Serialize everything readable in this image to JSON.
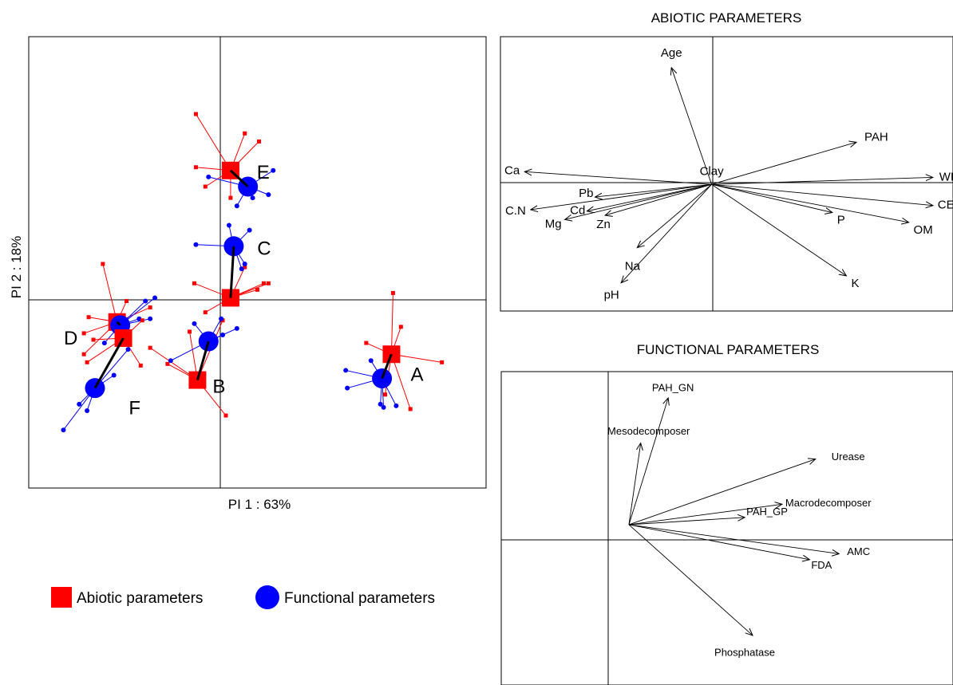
{
  "chart_data": [
    {
      "type": "scatter",
      "title": "",
      "xlabel": "PI 1 : 63%",
      "ylabel": "PI 2 : 18%",
      "xlim": [
        -1.2,
        1.7
      ],
      "ylim": [
        -1.1,
        1.7
      ],
      "grid": false,
      "legend_placement": "bottom-left",
      "series": [
        {
          "name": "Abiotic parameters",
          "color": "#ff0000",
          "marker": "square"
        },
        {
          "name": "Functional parameters",
          "color": "#0000ff",
          "marker": "circle"
        }
      ],
      "groups": [
        {
          "label": "A",
          "abiotic": [
            1.1,
            -0.27
          ],
          "functional": [
            1.04,
            -0.42
          ],
          "abiotic_points": [
            [
              1.11,
              0.11
            ],
            [
              1.42,
              -0.32
            ],
            [
              1.06,
              -0.52
            ],
            [
              0.94,
              -0.2
            ],
            [
              1.22,
              -0.61
            ],
            [
              1.16,
              -0.1
            ]
          ],
          "functional_points": [
            [
              0.81,
              -0.37
            ],
            [
              0.82,
              -0.48
            ],
            [
              1.03,
              -0.58
            ],
            [
              1.05,
              -0.6
            ],
            [
              1.13,
              -0.59
            ],
            [
              0.97,
              -0.31
            ]
          ]
        },
        {
          "label": "B",
          "abiotic": [
            -0.13,
            -0.43
          ],
          "functional": [
            -0.06,
            -0.19
          ],
          "abiotic_points": [
            [
              -0.32,
              -0.33
            ],
            [
              0.03,
              -0.06
            ],
            [
              0.05,
              -0.65
            ],
            [
              -0.18,
              -0.13
            ],
            [
              -0.43,
              -0.23
            ]
          ],
          "functional_points": [
            [
              0.03,
              -0.15
            ],
            [
              -0.3,
              -0.31
            ],
            [
              0.12,
              -0.11
            ],
            [
              -0.15,
              -0.08
            ],
            [
              0.02,
              -0.05
            ]
          ]
        },
        {
          "label": "C",
          "abiotic": [
            0.08,
            0.08
          ],
          "functional": [
            0.1,
            0.4
          ],
          "abiotic_points": [
            [
              -0.15,
              0.17
            ],
            [
              0.17,
              0.27
            ],
            [
              0.29,
              0.17
            ],
            [
              0.32,
              0.17
            ],
            [
              -0.08,
              -0.01
            ],
            [
              0.25,
              0.13
            ]
          ],
          "functional_points": [
            [
              -0.14,
              0.41
            ],
            [
              0.07,
              0.53
            ],
            [
              0.17,
              0.29
            ],
            [
              0.2,
              0.5
            ],
            [
              0.15,
              0.26
            ]
          ]
        },
        {
          "label": "D",
          "abiotic": [
            -0.64,
            -0.07
          ],
          "functional": [
            -0.62,
            -0.09
          ],
          "abiotic_points": [
            [
              -0.73,
              0.29
            ],
            [
              -0.82,
              -0.04
            ],
            [
              -0.85,
              -0.27
            ],
            [
              -0.43,
              0.02
            ],
            [
              -0.58,
              0.06
            ],
            [
              -0.85,
              -0.14
            ]
          ],
          "functional_points": [
            [
              -0.5,
              -0.05
            ],
            [
              -0.43,
              -0.05
            ],
            [
              -0.4,
              0.08
            ],
            [
              -0.46,
              0.06
            ],
            [
              -0.72,
              -0.2
            ]
          ]
        },
        {
          "label": "E",
          "abiotic": [
            0.08,
            0.87
          ],
          "functional": [
            0.19,
            0.77
          ],
          "abiotic_points": [
            [
              -0.14,
              1.22
            ],
            [
              0.17,
              1.1
            ],
            [
              0.26,
              1.05
            ],
            [
              -0.08,
              0.77
            ],
            [
              0.08,
              0.7
            ],
            [
              -0.14,
              0.89
            ]
          ],
          "functional_points": [
            [
              -0.06,
              0.83
            ],
            [
              0.35,
              0.87
            ],
            [
              0.32,
              0.72
            ],
            [
              0.12,
              0.65
            ],
            [
              0.22,
              0.7
            ]
          ]
        },
        {
          "label": "F",
          "abiotic": [
            -0.6,
            -0.17
          ],
          "functional": [
            -0.78,
            -0.48
          ],
          "abiotic_points": [
            [
              -0.48,
              -0.06
            ],
            [
              -0.49,
              -0.34
            ],
            [
              -0.83,
              -0.32
            ],
            [
              -0.79,
              -0.18
            ]
          ],
          "functional_points": [
            [
              -0.98,
              -0.74
            ],
            [
              -0.88,
              -0.58
            ],
            [
              -0.83,
              -0.62
            ],
            [
              -0.66,
              -0.4
            ],
            [
              -0.57,
              -0.24
            ]
          ]
        }
      ]
    },
    {
      "type": "biplot",
      "title": "ABIOTIC PARAMETERS",
      "xlim": [
        -1.05,
        1.2
      ],
      "ylim": [
        -0.9,
        1.05
      ],
      "arrows": [
        {
          "name": "Age",
          "x": -0.2,
          "y": 0.83
        },
        {
          "name": "PAH",
          "x": 0.72,
          "y": 0.3
        },
        {
          "name": "Clay",
          "x": 0.0,
          "y": 0.01
        },
        {
          "name": "Ca",
          "x": -0.93,
          "y": 0.09
        },
        {
          "name": "WHC",
          "x": 1.1,
          "y": 0.05
        },
        {
          "name": "C.N",
          "x": -0.9,
          "y": -0.18
        },
        {
          "name": "Pb",
          "x": -0.58,
          "y": -0.09
        },
        {
          "name": "Cd",
          "x": -0.62,
          "y": -0.19
        },
        {
          "name": "Mg",
          "x": -0.73,
          "y": -0.25
        },
        {
          "name": "Zn",
          "x": -0.53,
          "y": -0.22
        },
        {
          "name": "CEC",
          "x": 1.1,
          "y": -0.15
        },
        {
          "name": "P",
          "x": 0.6,
          "y": -0.2
        },
        {
          "name": "OM",
          "x": 0.98,
          "y": -0.27
        },
        {
          "name": "Na",
          "x": -0.37,
          "y": -0.45
        },
        {
          "name": "pH",
          "x": -0.45,
          "y": -0.7
        },
        {
          "name": "K",
          "x": 0.67,
          "y": -0.65
        }
      ]
    },
    {
      "type": "biplot",
      "title": "FUNCTIONAL PARAMETERS",
      "xlim": [
        -0.65,
        1.65
      ],
      "ylim": [
        -1.1,
        1.05
      ],
      "arrows": [
        {
          "name": "PAH_GN",
          "x": 0.2,
          "y": 0.87
        },
        {
          "name": "Mesodecomposer",
          "x": 0.06,
          "y": 0.56
        },
        {
          "name": "Urease",
          "x": 0.95,
          "y": 0.45
        },
        {
          "name": "Macrodecomposer",
          "x": 0.78,
          "y": 0.14
        },
        {
          "name": "PAH_GP",
          "x": 0.59,
          "y": 0.05
        },
        {
          "name": "AMC",
          "x": 1.07,
          "y": -0.2
        },
        {
          "name": "FDA",
          "x": 0.92,
          "y": -0.24
        },
        {
          "name": "Phosphatase",
          "x": 0.63,
          "y": -0.76
        }
      ]
    }
  ]
}
